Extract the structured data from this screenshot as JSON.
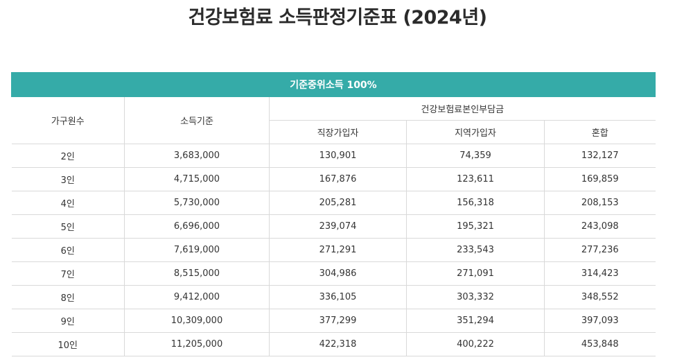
{
  "page_title": "건강보험료 소득판정기준표 (2024년)",
  "table": {
    "banner": "기준중위소득 100%",
    "col_household": "가구원수",
    "col_income": "소득기준",
    "col_group": "건강보험료본인부담금",
    "col_employee": "직장가입자",
    "col_regional": "지역가입자",
    "col_mixed": "혼합",
    "rows": [
      {
        "household": "2인",
        "income": "3,683,000",
        "employee": "130,901",
        "regional": "74,359",
        "mixed": "132,127"
      },
      {
        "household": "3인",
        "income": "4,715,000",
        "employee": "167,876",
        "regional": "123,611",
        "mixed": "169,859"
      },
      {
        "household": "4인",
        "income": "5,730,000",
        "employee": "205,281",
        "regional": "156,318",
        "mixed": "208,153"
      },
      {
        "household": "5인",
        "income": "6,696,000",
        "employee": "239,074",
        "regional": "195,321",
        "mixed": "243,098"
      },
      {
        "household": "6인",
        "income": "7,619,000",
        "employee": "271,291",
        "regional": "233,543",
        "mixed": "277,236"
      },
      {
        "household": "7인",
        "income": "8,515,000",
        "employee": "304,986",
        "regional": "271,091",
        "mixed": "314,423"
      },
      {
        "household": "8인",
        "income": "9,412,000",
        "employee": "336,105",
        "regional": "303,332",
        "mixed": "348,552"
      },
      {
        "household": "9인",
        "income": "10,309,000",
        "employee": "377,299",
        "regional": "351,294",
        "mixed": "397,093"
      },
      {
        "household": "10인",
        "income": "11,205,000",
        "employee": "422,318",
        "regional": "400,222",
        "mixed": "453,848"
      }
    ]
  },
  "colors": {
    "banner_bg": "#35aba8",
    "border": "#d9d9d9"
  }
}
